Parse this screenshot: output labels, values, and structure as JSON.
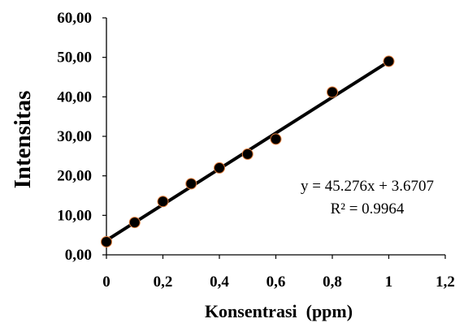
{
  "chart_data": {
    "type": "scatter",
    "title": "",
    "xlabel": "Konsentrasi  (ppm)",
    "ylabel": "Intensitas",
    "xlim": [
      0,
      1.2
    ],
    "ylim": [
      0,
      60
    ],
    "x_ticks": [
      "0",
      "0,2",
      "0,4",
      "0,6",
      "0,8",
      "1",
      "1,2"
    ],
    "y_ticks": [
      "0,00",
      "10,00",
      "20,00",
      "30,00",
      "40,00",
      "50,00",
      "60,00"
    ],
    "grid": false,
    "legend": "none",
    "series": [
      {
        "x": [
          0,
          0.1,
          0.2,
          0.3,
          0.4,
          0.5,
          0.6,
          0.8,
          1.0
        ],
        "y": [
          3.3,
          8.2,
          13.5,
          18.0,
          22.0,
          25.5,
          29.3,
          41.2,
          49.0
        ],
        "marker_color": "#000000",
        "marker_edge": "#e07b39"
      }
    ],
    "trendline": {
      "slope": 45.276,
      "intercept": 3.6707,
      "x_range": [
        0,
        1.0
      ],
      "color": "#000000"
    },
    "annotations": {
      "equation": "y = 45.276x + 3.6707",
      "r_squared": "R² = 0.9964"
    }
  }
}
